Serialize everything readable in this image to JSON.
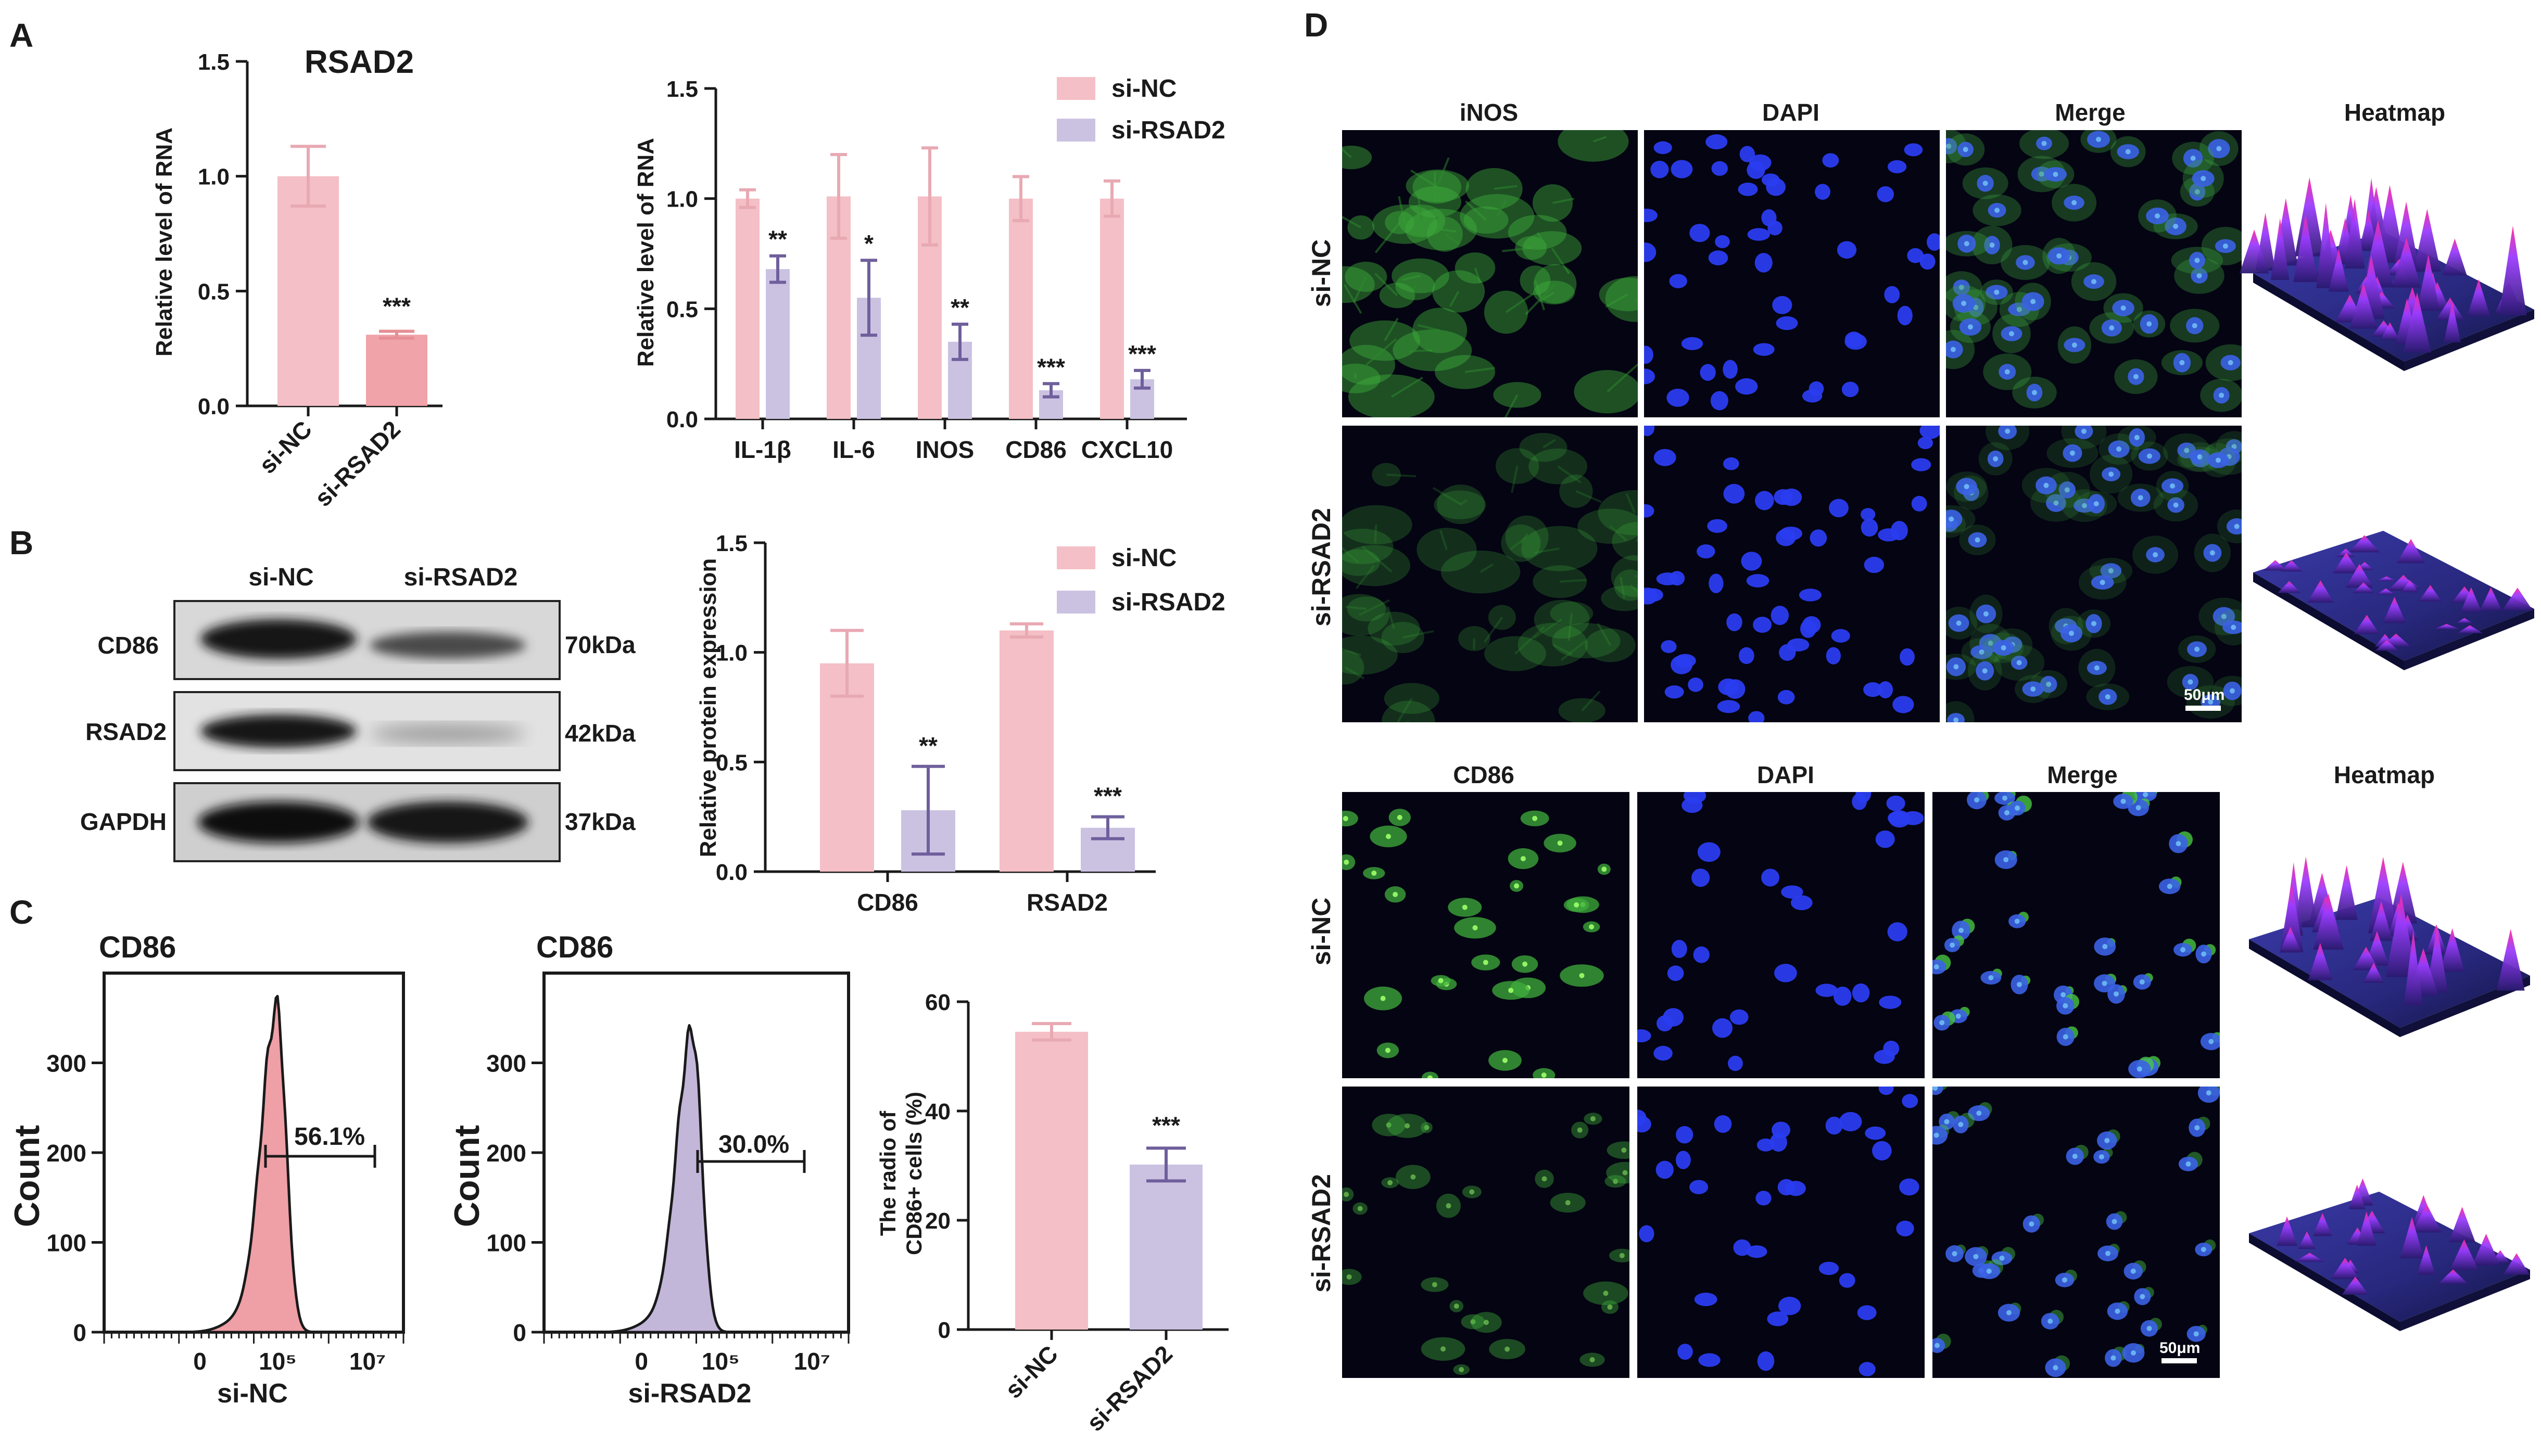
{
  "panel_letters": [
    "A",
    "B",
    "C",
    "D"
  ],
  "colors": {
    "pink": "#f4bfc6",
    "pink_dark": "#f0a3a8",
    "pink_err": "#e8a9b3",
    "lavender": "#cbc2e2",
    "lavender_err": "#6f5f9c",
    "axis": "#1a1a1a",
    "hist_pink": "#ef9fa6",
    "hist_lavender": "#c2b6d9",
    "micro_bg": "#040412"
  },
  "chart_data": [
    {
      "id": "A1",
      "type": "bar",
      "title": "RSAD2",
      "ylabel": "Relative level of RNA",
      "categories": [
        "si-NC",
        "si-RSAD2"
      ],
      "values": [
        1.0,
        0.31
      ],
      "errors": [
        0.13,
        0.015
      ],
      "significance": [
        "",
        "***"
      ],
      "ylim": [
        0,
        1.5
      ],
      "yticks": [
        "0.0",
        "0.5",
        "1.0",
        "1.5"
      ]
    },
    {
      "id": "A2",
      "type": "bar",
      "ylabel": "Relative level of RNA",
      "categories": [
        "IL-1β",
        "IL-6",
        "INOS",
        "CD86",
        "CXCL10"
      ],
      "series": [
        {
          "name": "si-NC",
          "values": [
            1.0,
            1.01,
            1.01,
            1.0,
            1.0
          ],
          "errors": [
            0.04,
            0.19,
            0.22,
            0.1,
            0.08
          ]
        },
        {
          "name": "si-RSAD2",
          "values": [
            0.68,
            0.55,
            0.35,
            0.13,
            0.18
          ],
          "errors": [
            0.06,
            0.17,
            0.08,
            0.03,
            0.04
          ],
          "significance": [
            "**",
            "*",
            "**",
            "***",
            "***"
          ]
        }
      ],
      "ylim": [
        0,
        1.5
      ],
      "yticks": [
        "0.0",
        "0.5",
        "1.0",
        "1.5"
      ],
      "legend": "top-right"
    },
    {
      "id": "B2",
      "type": "bar",
      "ylabel": "Relative protein expression",
      "categories": [
        "CD86",
        "RSAD2"
      ],
      "series": [
        {
          "name": "si-NC",
          "values": [
            0.95,
            1.1
          ],
          "errors": [
            0.15,
            0.03
          ]
        },
        {
          "name": "si-RSAD2",
          "values": [
            0.28,
            0.2
          ],
          "errors": [
            0.2,
            0.05
          ],
          "significance": [
            "**",
            "***"
          ]
        }
      ],
      "ylim": [
        0,
        1.5
      ],
      "yticks": [
        "0.0",
        "0.5",
        "1.0",
        "1.5"
      ],
      "legend": "top-right"
    },
    {
      "id": "C3",
      "type": "bar",
      "ylabel_line1": "The radio of",
      "ylabel_line2": "CD86+ cells (%)",
      "categories": [
        "si-NC",
        "si-RSAD2"
      ],
      "values": [
        54.5,
        30.2
      ],
      "errors": [
        1.5,
        3.0
      ],
      "significance": [
        "",
        "***"
      ],
      "ylim": [
        0,
        60
      ],
      "yticks": [
        "0",
        "20",
        "40",
        "60"
      ]
    },
    {
      "id": "C1",
      "type": "area",
      "title": "CD86",
      "ylabel": "Count",
      "xlabel": "si-NC",
      "gate_label": "56.1%",
      "yticks": [
        "0",
        "100",
        "200",
        "300"
      ],
      "xticks": [
        "0",
        "10⁵",
        "10⁷"
      ],
      "peak_count": 360
    },
    {
      "id": "C2",
      "type": "area",
      "title": "CD86",
      "ylabel": "Count",
      "xlabel": "si-RSAD2",
      "gate_label": "30.0%",
      "yticks": [
        "0",
        "100",
        "200",
        "300"
      ],
      "xticks": [
        "0",
        "10⁵",
        "10⁷"
      ],
      "peak_count": 335
    }
  ],
  "western_blot": {
    "columns": [
      "si-NC",
      "si-RSAD2"
    ],
    "rows": [
      {
        "label": "CD86",
        "kda": "70kDa"
      },
      {
        "label": "RSAD2",
        "kda": "42kDa"
      },
      {
        "label": "GAPDH",
        "kda": "37kDa"
      }
    ]
  },
  "microscopy": {
    "top": {
      "columns": [
        "iNOS",
        "DAPI",
        "Merge",
        "Heatmap"
      ],
      "rows": [
        "si-NC",
        "si-RSAD2"
      ],
      "scale_bar": "50μm"
    },
    "bottom": {
      "columns": [
        "CD86",
        "DAPI",
        "Merge",
        "Heatmap"
      ],
      "rows": [
        "si-NC",
        "si-RSAD2"
      ],
      "scale_bar": "50μm"
    }
  }
}
